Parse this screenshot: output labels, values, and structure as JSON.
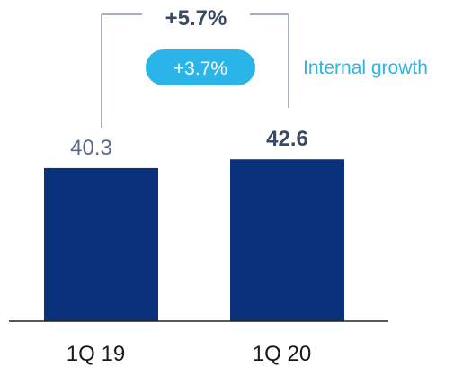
{
  "chart_data": {
    "type": "bar",
    "categories": [
      "1Q 19",
      "1Q 20"
    ],
    "values": [
      40.3,
      42.6
    ],
    "value_labels": [
      "40.3",
      "42.6"
    ],
    "total_growth": "+5.7%",
    "internal_growth": "+3.7%",
    "internal_growth_label": "Internal growth",
    "grid": false,
    "legend": "none"
  },
  "colors": {
    "bar": "#0a327a",
    "value_first": "#5a6b85",
    "value_last": "#3a4a66",
    "text": "#1a1a1a",
    "bracket": "#8a94a6",
    "pill": "#2ab4e8",
    "pill_text": "#ffffff",
    "legend_text": "#2ab4e8",
    "growth_text": "#3a4a66",
    "axis": "#222222"
  }
}
